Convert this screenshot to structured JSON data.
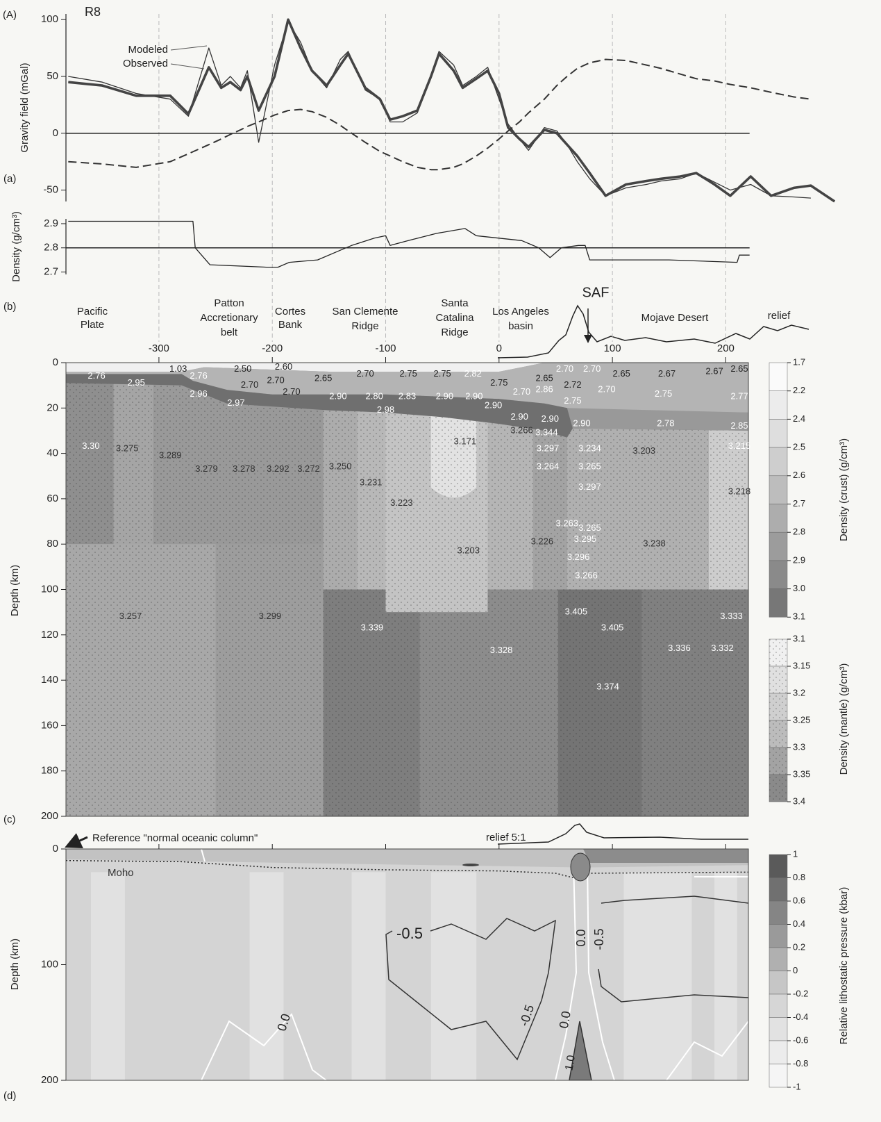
{
  "header": {
    "panel_label": "(A)",
    "profile": "R8"
  },
  "chart_data": [
    {
      "type": "line",
      "panel_label": "(a)",
      "y_label": "Gravity field (mGal)",
      "x": [
        -380,
        -350,
        -320,
        -290,
        -274,
        -256,
        -245,
        -237,
        -228,
        -222,
        -212,
        -198,
        -186,
        -175,
        -165,
        -152,
        -140,
        -133,
        -118,
        -105,
        -96,
        -85,
        -72,
        -60,
        -53,
        -40,
        -32,
        -20,
        -10,
        0,
        8,
        18,
        26,
        40,
        51,
        60,
        69,
        80,
        94,
        112,
        130,
        143,
        160,
        174,
        190,
        204,
        222,
        240,
        260,
        275,
        296
      ],
      "xlim": [
        -382,
        296
      ],
      "ylim": [
        -60,
        105
      ],
      "yticks": [
        100,
        50,
        0,
        -50
      ],
      "reference_line": 0,
      "series": [
        {
          "name": "Modeled",
          "color": "#333333",
          "style": "thin",
          "values": [
            50,
            45,
            35,
            30,
            15,
            75,
            42,
            50,
            40,
            55,
            -8,
            60,
            98,
            80,
            55,
            40,
            65,
            72,
            38,
            30,
            10,
            10,
            18,
            50,
            72,
            60,
            42,
            50,
            58,
            30,
            8,
            -5,
            -15,
            5,
            2,
            -10,
            -25,
            -40,
            -55,
            -48,
            -45,
            -42,
            -40,
            -35,
            -43,
            -50,
            -45,
            -55,
            -56,
            -57,
            null
          ]
        },
        {
          "name": "Observed",
          "color": "#444444",
          "style": "thick",
          "values": [
            45,
            42,
            33,
            33,
            17,
            58,
            40,
            45,
            38,
            50,
            20,
            50,
            100,
            75,
            55,
            42,
            60,
            70,
            40,
            30,
            12,
            15,
            20,
            50,
            70,
            55,
            40,
            48,
            55,
            35,
            5,
            -5,
            -12,
            3,
            0,
            -10,
            -20,
            -35,
            -55,
            -45,
            -42,
            -40,
            -38,
            -35,
            -45,
            -55,
            -38,
            -55,
            -48,
            -46,
            -60
          ]
        },
        {
          "color": "#333333",
          "style": "dashed",
          "values": [
            -25,
            -27,
            -30,
            -25,
            -18,
            -10,
            -5,
            -1,
            3,
            6,
            10,
            16,
            20,
            21,
            19,
            14,
            7,
            2,
            -8,
            -16,
            -20,
            -25,
            -30,
            -32,
            -32,
            -30,
            -27,
            -20,
            -13,
            -5,
            2,
            10,
            18,
            30,
            42,
            50,
            57,
            62,
            65,
            64,
            60,
            57,
            52,
            48,
            46,
            43,
            40,
            36,
            32,
            30,
            null
          ]
        }
      ]
    },
    {
      "type": "line",
      "y_label": "Density (g/cm³)",
      "x": [
        -380,
        -270,
        -268,
        -255,
        -205,
        -195,
        -185,
        -160,
        -140,
        -130,
        -110,
        -100,
        -96,
        -80,
        -55,
        -30,
        -20,
        0,
        20,
        35,
        45,
        55,
        70,
        76,
        80,
        150,
        210,
        212,
        221
      ],
      "xlim": [
        -382,
        221
      ],
      "ylim": [
        2.69,
        2.92
      ],
      "yticks": [
        2.9,
        2.8,
        2.7
      ],
      "reference_line": 2.8,
      "series": [
        {
          "color": "#222222",
          "style": "thin",
          "values": [
            2.91,
            2.91,
            2.8,
            2.73,
            2.72,
            2.72,
            2.74,
            2.75,
            2.79,
            2.81,
            2.84,
            2.85,
            2.81,
            2.83,
            2.86,
            2.88,
            2.85,
            2.84,
            2.83,
            2.8,
            2.76,
            2.8,
            2.81,
            2.81,
            2.75,
            2.75,
            2.74,
            2.77,
            2.77
          ]
        }
      ]
    },
    {
      "type": "section",
      "panel_label": "(b)",
      "panel_label_2": "(c)",
      "y_label": "Depth (km)",
      "regions": [
        [
          "Pacific",
          "Plate"
        ],
        [
          "Patton",
          "Accretionary",
          "belt"
        ],
        [
          "Cortes",
          "Bank"
        ],
        [
          "San Clemente",
          "Ridge"
        ],
        [
          "Santa",
          "Catalina",
          "Ridge"
        ],
        [
          "Los Angeles",
          "basin"
        ],
        [
          "Mojave Desert"
        ]
      ],
      "fault": "SAF",
      "relief_label": "relief",
      "xlim": [
        -382,
        221
      ],
      "xticks": [
        -300,
        -200,
        -100,
        0,
        100,
        200
      ],
      "grid": true,
      "ylim": [
        0,
        200
      ],
      "yticks": [
        0,
        20,
        40,
        60,
        80,
        100,
        120,
        140,
        160,
        180,
        200
      ],
      "crust_labels": [
        "2.76",
        "1.03",
        "2.50",
        "2.60",
        "2.65",
        "2.70",
        "2.75",
        "2.75",
        "2.82",
        "2.75",
        "2.65",
        "2.70",
        "2.70",
        "2.65",
        "2.67",
        "2.67",
        "2.65",
        "2.95",
        "2.76",
        "2.70",
        "2.70",
        "2.70",
        "2.96",
        "2.97",
        "2.86",
        "2.72",
        "2.70",
        "2.90",
        "2.80",
        "2.83",
        "2.90",
        "2.90",
        "2.70",
        "2.75",
        "2.75",
        "2.77",
        "2.90",
        "2.98",
        "2.90",
        "2.90",
        "2.90",
        "2.78",
        "2.85"
      ],
      "mantle_labels": [
        "3.30",
        "3.275",
        "3.289",
        "3.279",
        "3.278",
        "3.292",
        "3.272",
        "3.250",
        "3.231",
        "3.223",
        "3.171",
        "3.203",
        "3.266",
        "3.344",
        "3.297",
        "3.264",
        "3.234",
        "3.265",
        "3.203",
        "3.297",
        "3.263",
        "3.265",
        "3.226",
        "3.295",
        "3.296",
        "3.266",
        "3.238",
        "3.218",
        "3.215",
        "3.257",
        "3.299",
        "3.339",
        "3.328",
        "3.405",
        "3.405",
        "3.336",
        "3.332",
        "3.333",
        "3.374"
      ],
      "crust_colorbar": {
        "label": "Density (crust) (g/cm³)",
        "ticks": [
          1.7,
          2.2,
          2.4,
          2.5,
          2.6,
          2.7,
          2.8,
          2.9,
          {
            "value": 3,
            "label": "3.0"
          },
          3.1
        ]
      },
      "mantle_colorbar": {
        "label": "Density (mantle) (g/cm³)",
        "ticks": [
          3.1,
          3.15,
          3.2,
          3.25,
          3.3,
          3.35,
          3.4
        ]
      }
    },
    {
      "type": "pressure",
      "panel_label": "(d)",
      "y_label": "Depth (km)",
      "annotation": "Reference \"normal oceanic column\"",
      "moho_label": "Moho",
      "relief_label": "relief 5:1",
      "xlim": [
        -382,
        221
      ],
      "ylim": [
        0,
        200
      ],
      "yticks": [
        0,
        100,
        200
      ],
      "contour_labels": [
        "-0.5",
        "0.0",
        "-0.5",
        "-0.5",
        "0.0",
        "0.0",
        "1.0"
      ],
      "colorbar": {
        "label": "Relative lithostatic pressure (kbar)",
        "ticks": [
          1,
          0.8,
          0.6,
          0.4,
          0.2,
          0,
          -0.2,
          -0.4,
          -0.6,
          -0.8,
          -1
        ]
      }
    }
  ]
}
